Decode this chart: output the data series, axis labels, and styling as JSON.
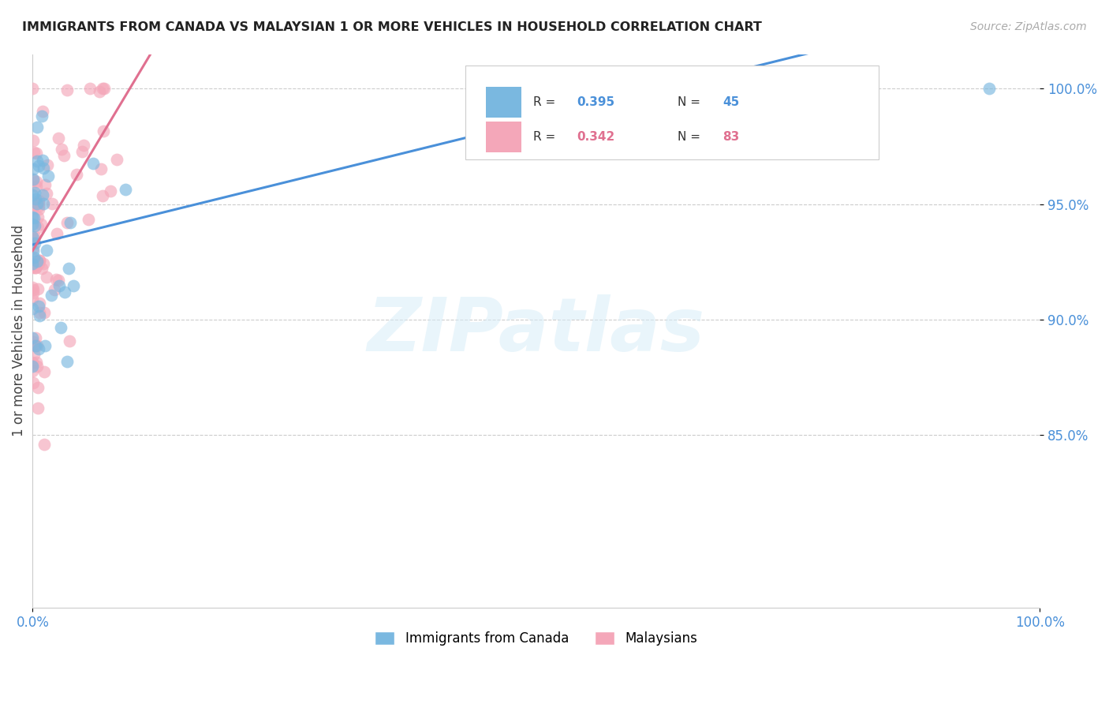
{
  "title": "IMMIGRANTS FROM CANADA VS MALAYSIAN 1 OR MORE VEHICLES IN HOUSEHOLD CORRELATION CHART",
  "source": "Source: ZipAtlas.com",
  "ylabel": "1 or more Vehicles in Household",
  "canada_color": "#7ab8e0",
  "malaysia_color": "#f4a7b9",
  "trend_canada_color": "#4a90d9",
  "trend_malaysia_color": "#e07090",
  "watermark": "ZIPatlas",
  "R_canada": 0.395,
  "N_canada": 45,
  "R_malaysia": 0.342,
  "N_malaysia": 83,
  "yticks": [
    0.85,
    0.9,
    0.95,
    1.0
  ],
  "ytick_labels": [
    "85.0%",
    "90.0%",
    "95.0%",
    "100.0%"
  ],
  "xtick_labels": [
    "0.0%",
    "100.0%"
  ],
  "xticks": [
    0.0,
    1.0
  ],
  "xlim": [
    0.0,
    1.0
  ],
  "ylim": [
    0.775,
    1.015
  ],
  "legend_label_canada": "Immigrants from Canada",
  "legend_label_malay": "Malaysians"
}
